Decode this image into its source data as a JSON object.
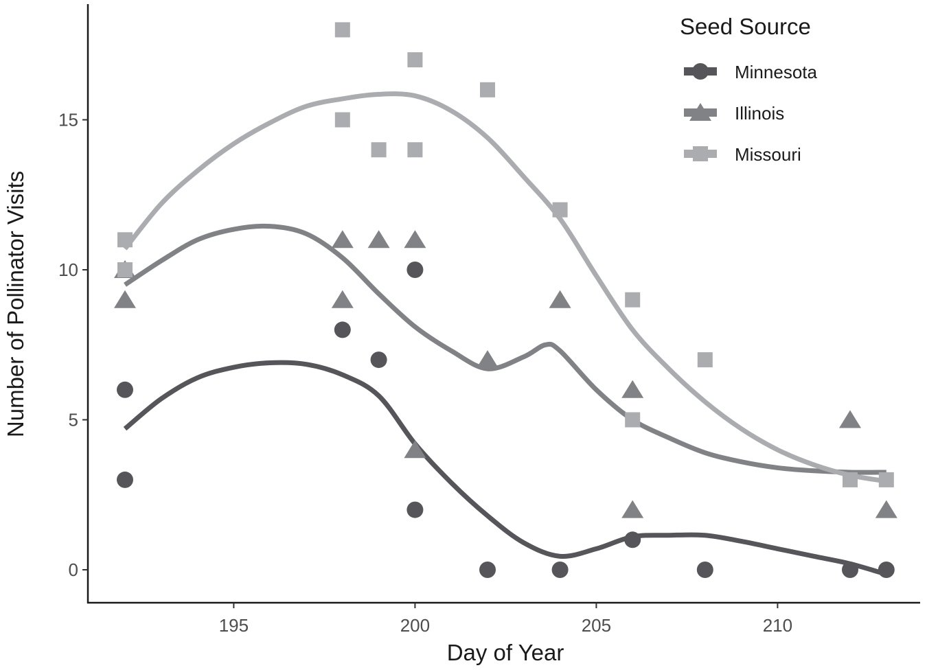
{
  "chart_data": {
    "type": "scatter",
    "title": "",
    "xlabel": "Day of Year",
    "ylabel": "Number of Pollinator Visits",
    "xlim": [
      191,
      214
    ],
    "ylim": [
      -1,
      18.8
    ],
    "xticks": [
      195,
      200,
      205,
      210
    ],
    "yticks": [
      0,
      5,
      10,
      15
    ],
    "grid": false,
    "legend": {
      "title": "Seed Source",
      "position": "top-right"
    },
    "series": [
      {
        "name": "Minnesota",
        "marker": "circle",
        "color": "#55555a",
        "points": [
          [
            192,
            6
          ],
          [
            192,
            3
          ],
          [
            198,
            8
          ],
          [
            199,
            7
          ],
          [
            200,
            10
          ],
          [
            200,
            2
          ],
          [
            202,
            0
          ],
          [
            204,
            0
          ],
          [
            206,
            1
          ],
          [
            208,
            0
          ],
          [
            212,
            0
          ],
          [
            213,
            0
          ]
        ],
        "smooth": [
          [
            192,
            4.7
          ],
          [
            193,
            5.7
          ],
          [
            194,
            6.4
          ],
          [
            195,
            6.75
          ],
          [
            196,
            6.9
          ],
          [
            197,
            6.85
          ],
          [
            198,
            6.5
          ],
          [
            199,
            5.8
          ],
          [
            200,
            4.2
          ],
          [
            201,
            2.9
          ],
          [
            202,
            1.8
          ],
          [
            203,
            0.9
          ],
          [
            204,
            0.45
          ],
          [
            205,
            0.7
          ],
          [
            206,
            1.1
          ],
          [
            207,
            1.15
          ],
          [
            208,
            1.15
          ],
          [
            209,
            0.95
          ],
          [
            210,
            0.7
          ],
          [
            211,
            0.45
          ],
          [
            212,
            0.2
          ],
          [
            213,
            -0.15
          ]
        ]
      },
      {
        "name": "Illinois",
        "marker": "triangle",
        "color": "#808285",
        "points": [
          [
            192,
            10
          ],
          [
            192,
            9
          ],
          [
            198,
            11
          ],
          [
            198,
            9
          ],
          [
            199,
            11
          ],
          [
            200,
            11
          ],
          [
            200,
            4
          ],
          [
            202,
            7
          ],
          [
            204,
            9
          ],
          [
            206,
            6
          ],
          [
            206,
            2
          ],
          [
            212,
            5
          ],
          [
            213,
            2
          ]
        ],
        "smooth": [
          [
            192,
            9.5
          ],
          [
            193,
            10.3
          ],
          [
            194,
            11.0
          ],
          [
            195,
            11.35
          ],
          [
            196,
            11.45
          ],
          [
            197,
            11.2
          ],
          [
            198,
            10.4
          ],
          [
            199,
            9.2
          ],
          [
            200,
            8.1
          ],
          [
            201,
            7.3
          ],
          [
            202,
            6.7
          ],
          [
            203,
            7.1
          ],
          [
            203.6,
            7.5
          ],
          [
            204,
            7.3
          ],
          [
            205,
            6.0
          ],
          [
            206,
            5.0
          ],
          [
            207,
            4.4
          ],
          [
            208,
            3.9
          ],
          [
            209,
            3.6
          ],
          [
            210,
            3.4
          ],
          [
            211,
            3.3
          ],
          [
            212,
            3.25
          ],
          [
            213,
            3.25
          ]
        ]
      },
      {
        "name": "Missouri",
        "marker": "square",
        "color": "#aaacaf",
        "points": [
          [
            192,
            11
          ],
          [
            192,
            10
          ],
          [
            198,
            18
          ],
          [
            198,
            15
          ],
          [
            199,
            14
          ],
          [
            200,
            17
          ],
          [
            200,
            14
          ],
          [
            202,
            16
          ],
          [
            204,
            12
          ],
          [
            206,
            9
          ],
          [
            206,
            5
          ],
          [
            208,
            7
          ],
          [
            212,
            3
          ],
          [
            213,
            3
          ]
        ],
        "smooth": [
          [
            192,
            10.7
          ],
          [
            193,
            12.2
          ],
          [
            194,
            13.3
          ],
          [
            195,
            14.2
          ],
          [
            196,
            14.9
          ],
          [
            197,
            15.45
          ],
          [
            198,
            15.7
          ],
          [
            199,
            15.85
          ],
          [
            200,
            15.8
          ],
          [
            201,
            15.3
          ],
          [
            202,
            14.4
          ],
          [
            203,
            13.1
          ],
          [
            204,
            11.7
          ],
          [
            205,
            9.8
          ],
          [
            206,
            8.0
          ],
          [
            207,
            6.7
          ],
          [
            208,
            5.6
          ],
          [
            209,
            4.7
          ],
          [
            210,
            4.0
          ],
          [
            211,
            3.5
          ],
          [
            212,
            3.15
          ],
          [
            213,
            2.95
          ]
        ]
      }
    ]
  }
}
